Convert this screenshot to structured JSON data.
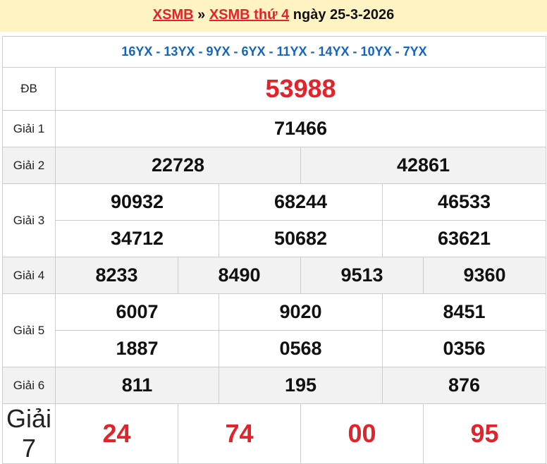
{
  "header": {
    "link1": "XSMB",
    "sep": "»",
    "link2": "XSMB thứ 4",
    "date_text": "ngày 25-3-2026"
  },
  "codes": "16YX - 13YX - 9YX - 6YX - 11YX - 14YX - 10YX - 7YX",
  "prizes": {
    "db": {
      "label": "ĐB",
      "numbers": [
        "53988"
      ]
    },
    "g1": {
      "label": "Giải 1",
      "numbers": [
        "71466"
      ]
    },
    "g2": {
      "label": "Giải 2",
      "numbers": [
        "22728",
        "42861"
      ]
    },
    "g3": {
      "label": "Giải 3",
      "numbers": [
        "90932",
        "68244",
        "46533",
        "34712",
        "50682",
        "63621"
      ]
    },
    "g4": {
      "label": "Giải 4",
      "numbers": [
        "8233",
        "8490",
        "9513",
        "9360"
      ]
    },
    "g5": {
      "label": "Giải 5",
      "numbers": [
        "6007",
        "9020",
        "8451",
        "1887",
        "0568",
        "0356"
      ]
    },
    "g6": {
      "label": "Giải 6",
      "numbers": [
        "811",
        "195",
        "876"
      ]
    },
    "g7": {
      "label": "Giải 7",
      "numbers": [
        "24",
        "74",
        "00",
        "95"
      ]
    }
  },
  "colors": {
    "accent_red": "#e4222a",
    "code_blue": "#1565c0",
    "header_bg": "#fff3c4"
  }
}
